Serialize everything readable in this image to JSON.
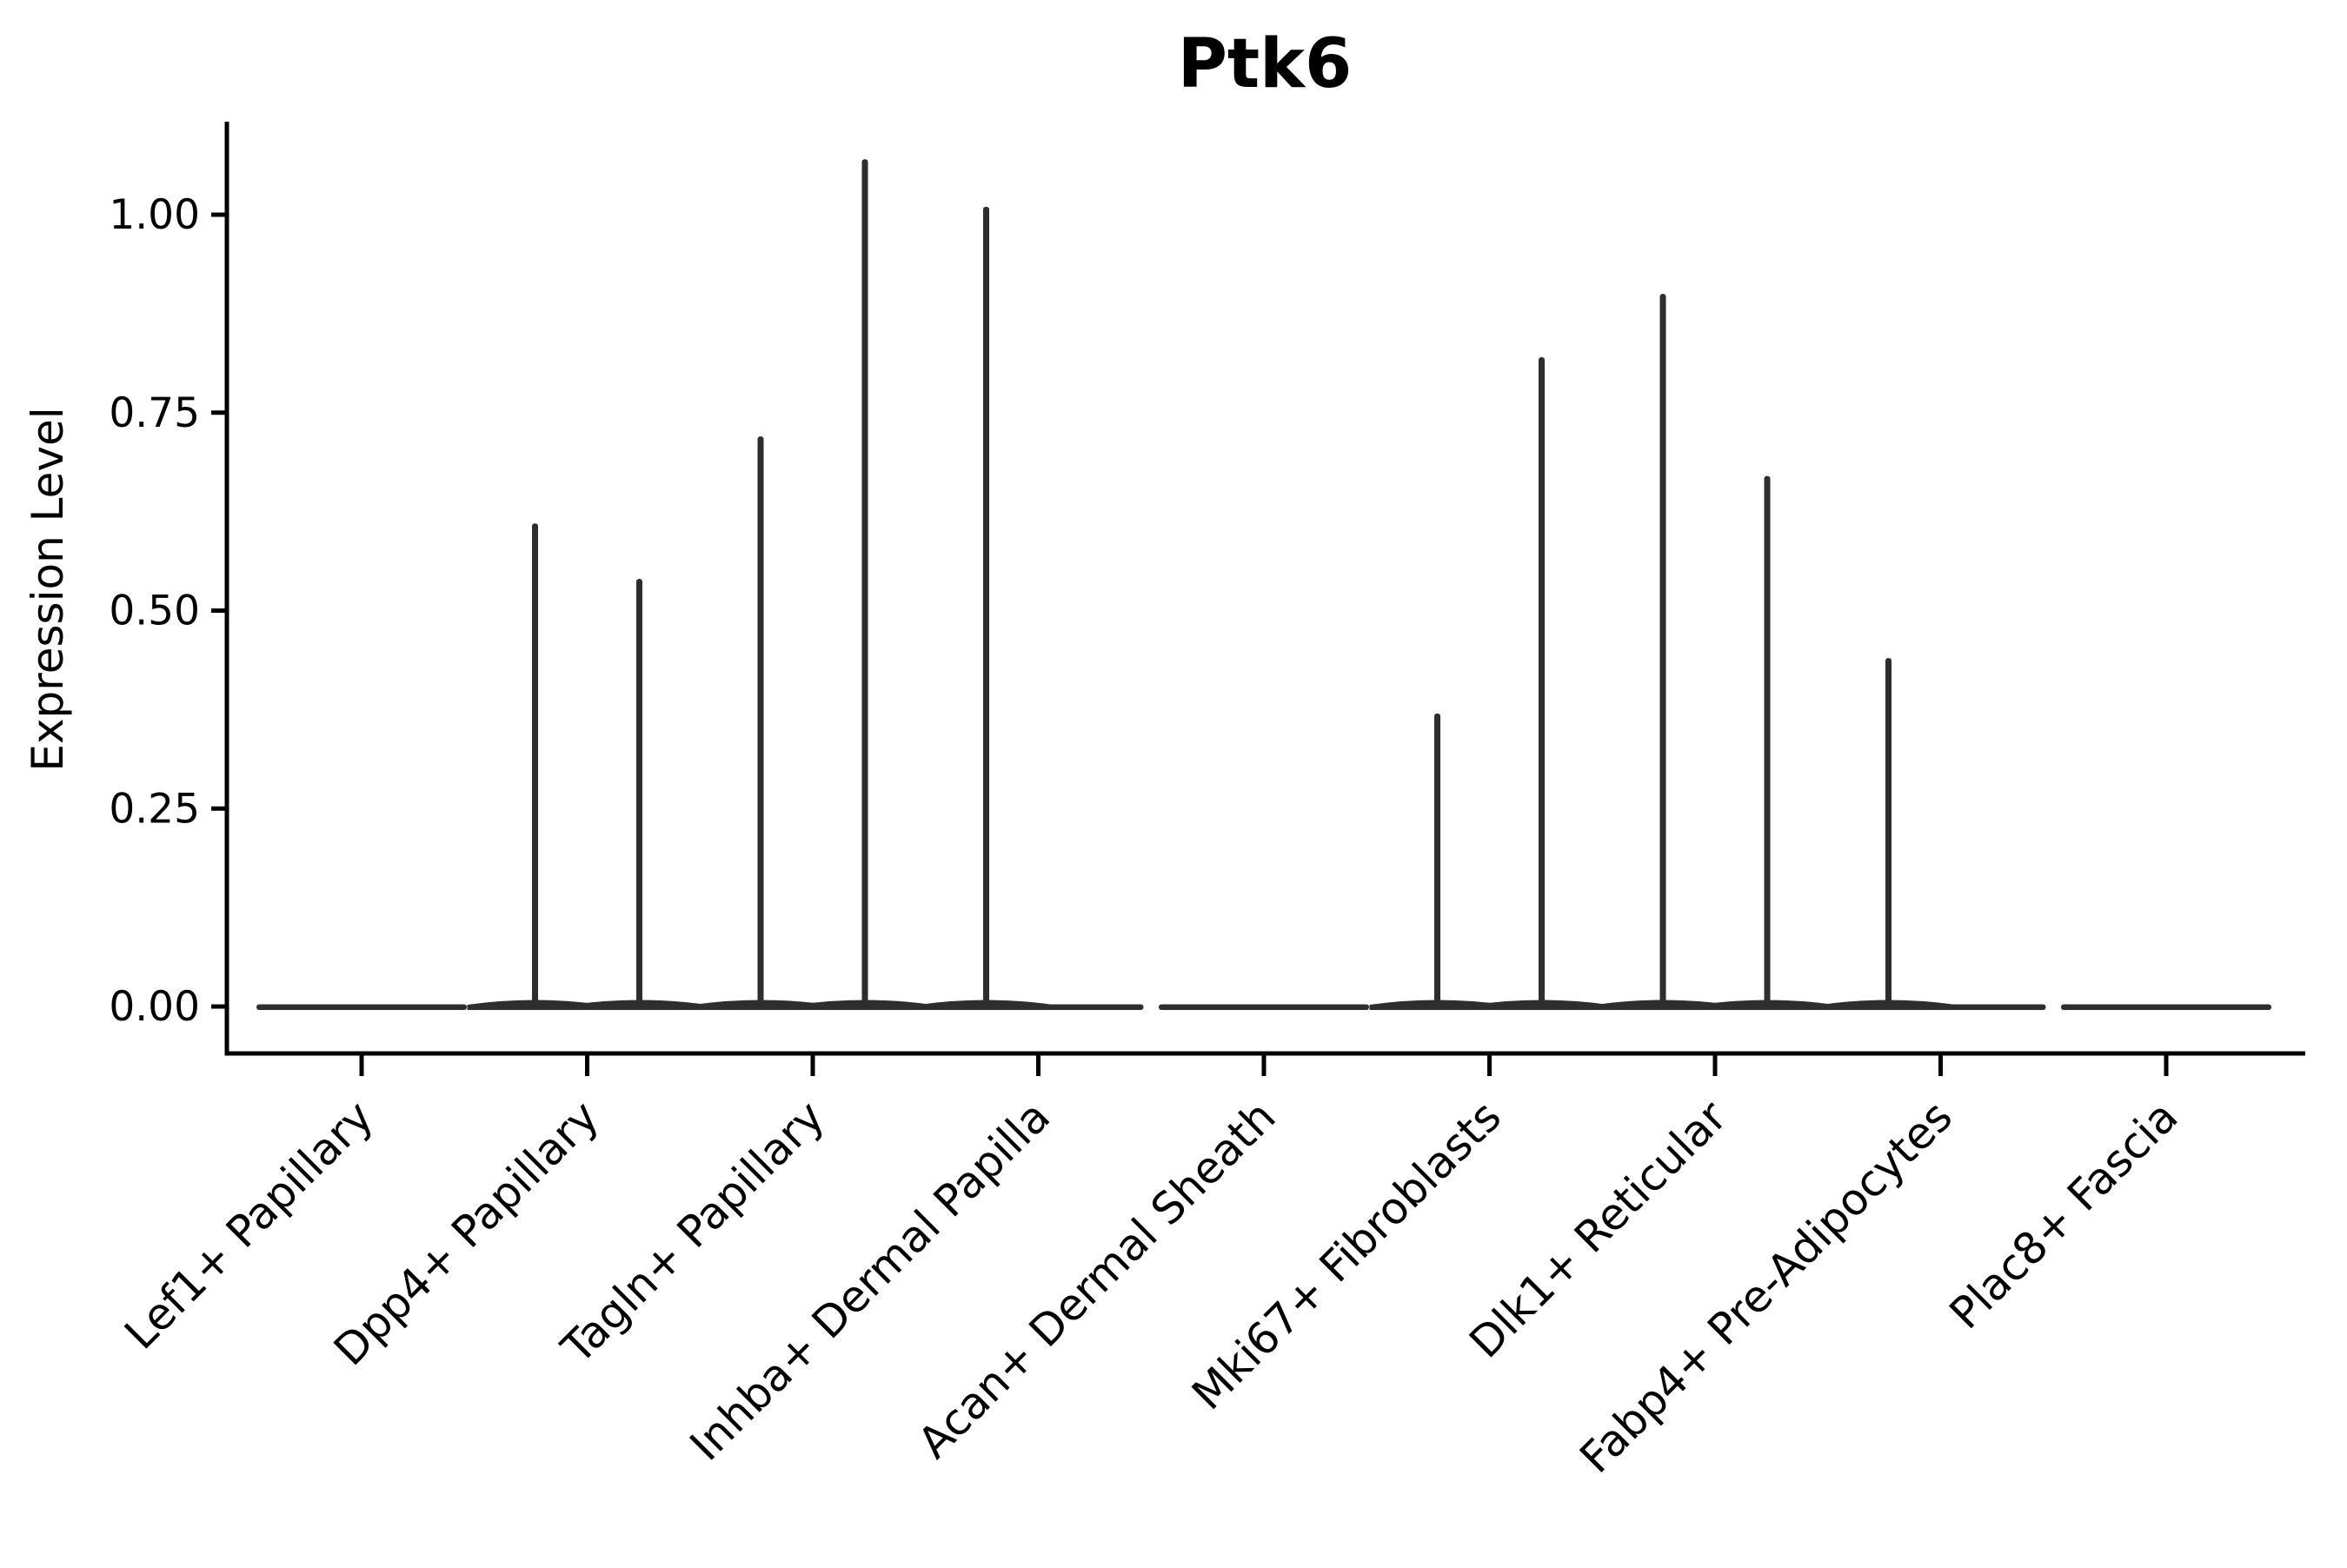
{
  "chart_data": {
    "type": "violin",
    "title": "Ptk6",
    "ylabel": "Expression Level",
    "xlabel": "",
    "categories": [
      "Lef1+ Papillary",
      "Dpp4+ Papillary",
      "Tagln+ Papillary",
      "Inhba+ Dermal Papilla",
      "Acan+ Dermal Sheath",
      "Mki67+ Fibroblasts",
      "Dlk1+ Reticular",
      "Fabp4+ Pre-Adipocytes",
      "Plac8+ Fascia"
    ],
    "series": [
      {
        "name": "left_violin",
        "max_values": [
          null,
          0.61,
          0.72,
          1.01,
          null,
          0.37,
          0.9,
          0.44,
          null
        ]
      },
      {
        "name": "right_violin",
        "max_values": [
          null,
          0.54,
          1.07,
          null,
          null,
          0.82,
          0.67,
          null,
          null
        ]
      }
    ],
    "baseline_value": 0.0,
    "ytick_labels": [
      "0.00",
      "0.25",
      "0.50",
      "0.75",
      "1.00"
    ],
    "ytick_values": [
      0.0,
      0.25,
      0.5,
      0.75,
      1.0
    ],
    "ylim": [
      -0.06,
      1.12
    ],
    "grid": false,
    "legend": "none",
    "x_tick_rotation_deg": 45,
    "violin_color": "#2e2e2e",
    "axis_color": "#000000"
  }
}
